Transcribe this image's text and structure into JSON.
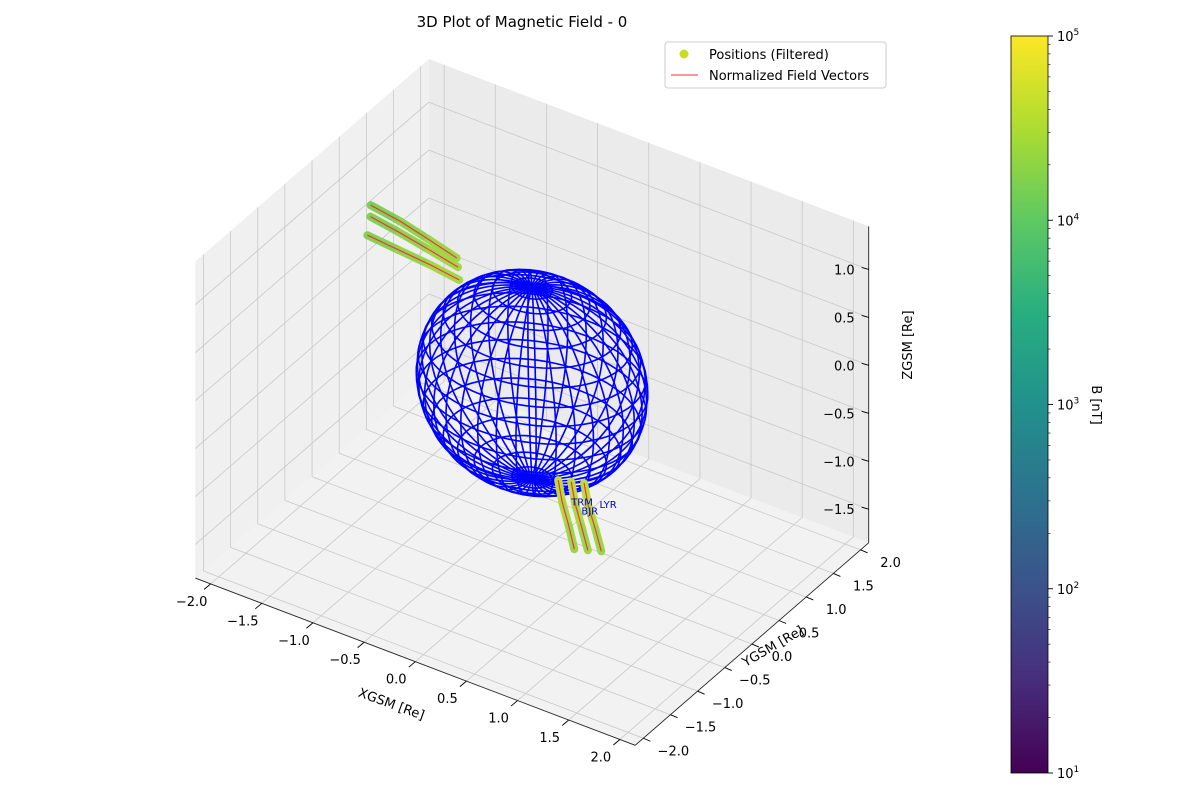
{
  "chart_data": {
    "type": "scatter",
    "projection": "3d",
    "title": "3D Plot of Magnetic Field - 0",
    "axes": {
      "x": {
        "label": "XGSM [Re]",
        "range": [
          -2.0,
          2.0
        ],
        "ticks": [
          -2.0,
          -1.5,
          -1.0,
          -0.5,
          0.0,
          0.5,
          1.0,
          1.5,
          2.0
        ]
      },
      "y": {
        "label": "YGSM [Re]",
        "range": [
          -2.0,
          2.0
        ],
        "ticks": [
          -2.0,
          -1.5,
          -1.0,
          -0.5,
          0.0,
          0.5,
          1.0,
          1.5,
          2.0
        ]
      },
      "z": {
        "label": "ZGSM [Re]",
        "range": [
          -1.75,
          1.35
        ],
        "ticks": [
          -1.5,
          -1.0,
          -0.5,
          0.0,
          0.5,
          1.0
        ]
      }
    },
    "grid": true,
    "legend": {
      "placement": "upper right",
      "entries": [
        {
          "label": "Positions (Filtered)",
          "marker": "circle",
          "color": "#c8dc28"
        },
        {
          "label": "Normalized Field Vectors",
          "marker": "line",
          "color": "#e8393a"
        }
      ]
    },
    "colorbar": {
      "label": "B [nT]",
      "scale": "log",
      "colormap": "viridis",
      "range": [
        10,
        100000
      ],
      "ticks": [
        {
          "base": "10",
          "exp": "5"
        },
        {
          "base": "10",
          "exp": "4"
        },
        {
          "base": "10",
          "exp": "3"
        },
        {
          "base": "10",
          "exp": "2"
        },
        {
          "base": "10",
          "exp": "1"
        }
      ]
    },
    "sphere": {
      "center": [
        0,
        0,
        0
      ],
      "radius": 1.0,
      "color": "#0000ff",
      "style": "wireframe"
    },
    "stations": [
      {
        "name": "TRM",
        "x": 0.25,
        "y": 0.25,
        "z": -1.3
      },
      {
        "name": "BJR",
        "x": 0.35,
        "y": 0.25,
        "z": -1.35
      },
      {
        "name": "LYR",
        "x": 0.5,
        "y": 0.3,
        "z": -1.25
      }
    ],
    "field_lines": [
      {
        "segment": "north",
        "points": [
          [
            -1.45,
            -0.3,
            1.1
          ],
          [
            -1.2,
            -0.2,
            1.0
          ],
          [
            -0.95,
            -0.1,
            0.9
          ],
          [
            -0.7,
            -0.02,
            0.8
          ]
        ],
        "B_nT": [
          18000,
          22000,
          28000,
          35000
        ]
      },
      {
        "segment": "north",
        "points": [
          [
            -1.5,
            -0.15,
            1.2
          ],
          [
            -1.25,
            -0.08,
            1.1
          ],
          [
            -1.0,
            0.0,
            0.98
          ],
          [
            -0.75,
            0.05,
            0.88
          ]
        ],
        "B_nT": [
          17000,
          21000,
          27000,
          34000
        ]
      },
      {
        "segment": "north",
        "points": [
          [
            -1.55,
            -0.05,
            1.25
          ],
          [
            -1.3,
            0.02,
            1.15
          ],
          [
            -1.05,
            0.08,
            1.03
          ],
          [
            -0.8,
            0.12,
            0.92
          ]
        ],
        "B_nT": [
          16000,
          20000,
          26000,
          33000
        ]
      },
      {
        "segment": "south",
        "points": [
          [
            0.15,
            0.2,
            -1.05
          ],
          [
            0.2,
            0.18,
            -1.25
          ],
          [
            0.28,
            0.15,
            -1.45
          ],
          [
            0.35,
            0.12,
            -1.65
          ]
        ],
        "B_nT": [
          40000,
          32000,
          25000,
          20000
        ]
      },
      {
        "segment": "south",
        "points": [
          [
            0.25,
            0.25,
            -1.05
          ],
          [
            0.3,
            0.23,
            -1.25
          ],
          [
            0.38,
            0.2,
            -1.45
          ],
          [
            0.45,
            0.18,
            -1.65
          ]
        ],
        "B_nT": [
          40000,
          32000,
          25000,
          20000
        ]
      },
      {
        "segment": "south",
        "points": [
          [
            0.35,
            0.3,
            -1.05
          ],
          [
            0.4,
            0.28,
            -1.25
          ],
          [
            0.48,
            0.26,
            -1.45
          ],
          [
            0.55,
            0.24,
            -1.65
          ]
        ],
        "B_nT": [
          40000,
          32000,
          25000,
          20000
        ]
      }
    ]
  }
}
